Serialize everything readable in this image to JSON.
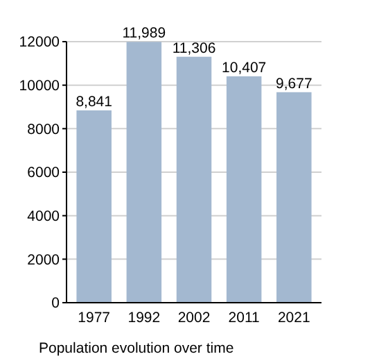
{
  "chart_data": {
    "type": "bar",
    "title": "Population evolution over time",
    "categories": [
      "1977",
      "1992",
      "2002",
      "2011",
      "2021"
    ],
    "values": [
      8841,
      11989,
      11306,
      10407,
      9677
    ],
    "value_labels": [
      "8,841",
      "11,989",
      "11,306",
      "10,407",
      "9,677"
    ],
    "color": "#a3b8d0",
    "ylim": [
      0,
      12000
    ],
    "yticks": [
      0,
      2000,
      4000,
      6000,
      8000,
      10000,
      12000
    ],
    "grid": "y"
  }
}
